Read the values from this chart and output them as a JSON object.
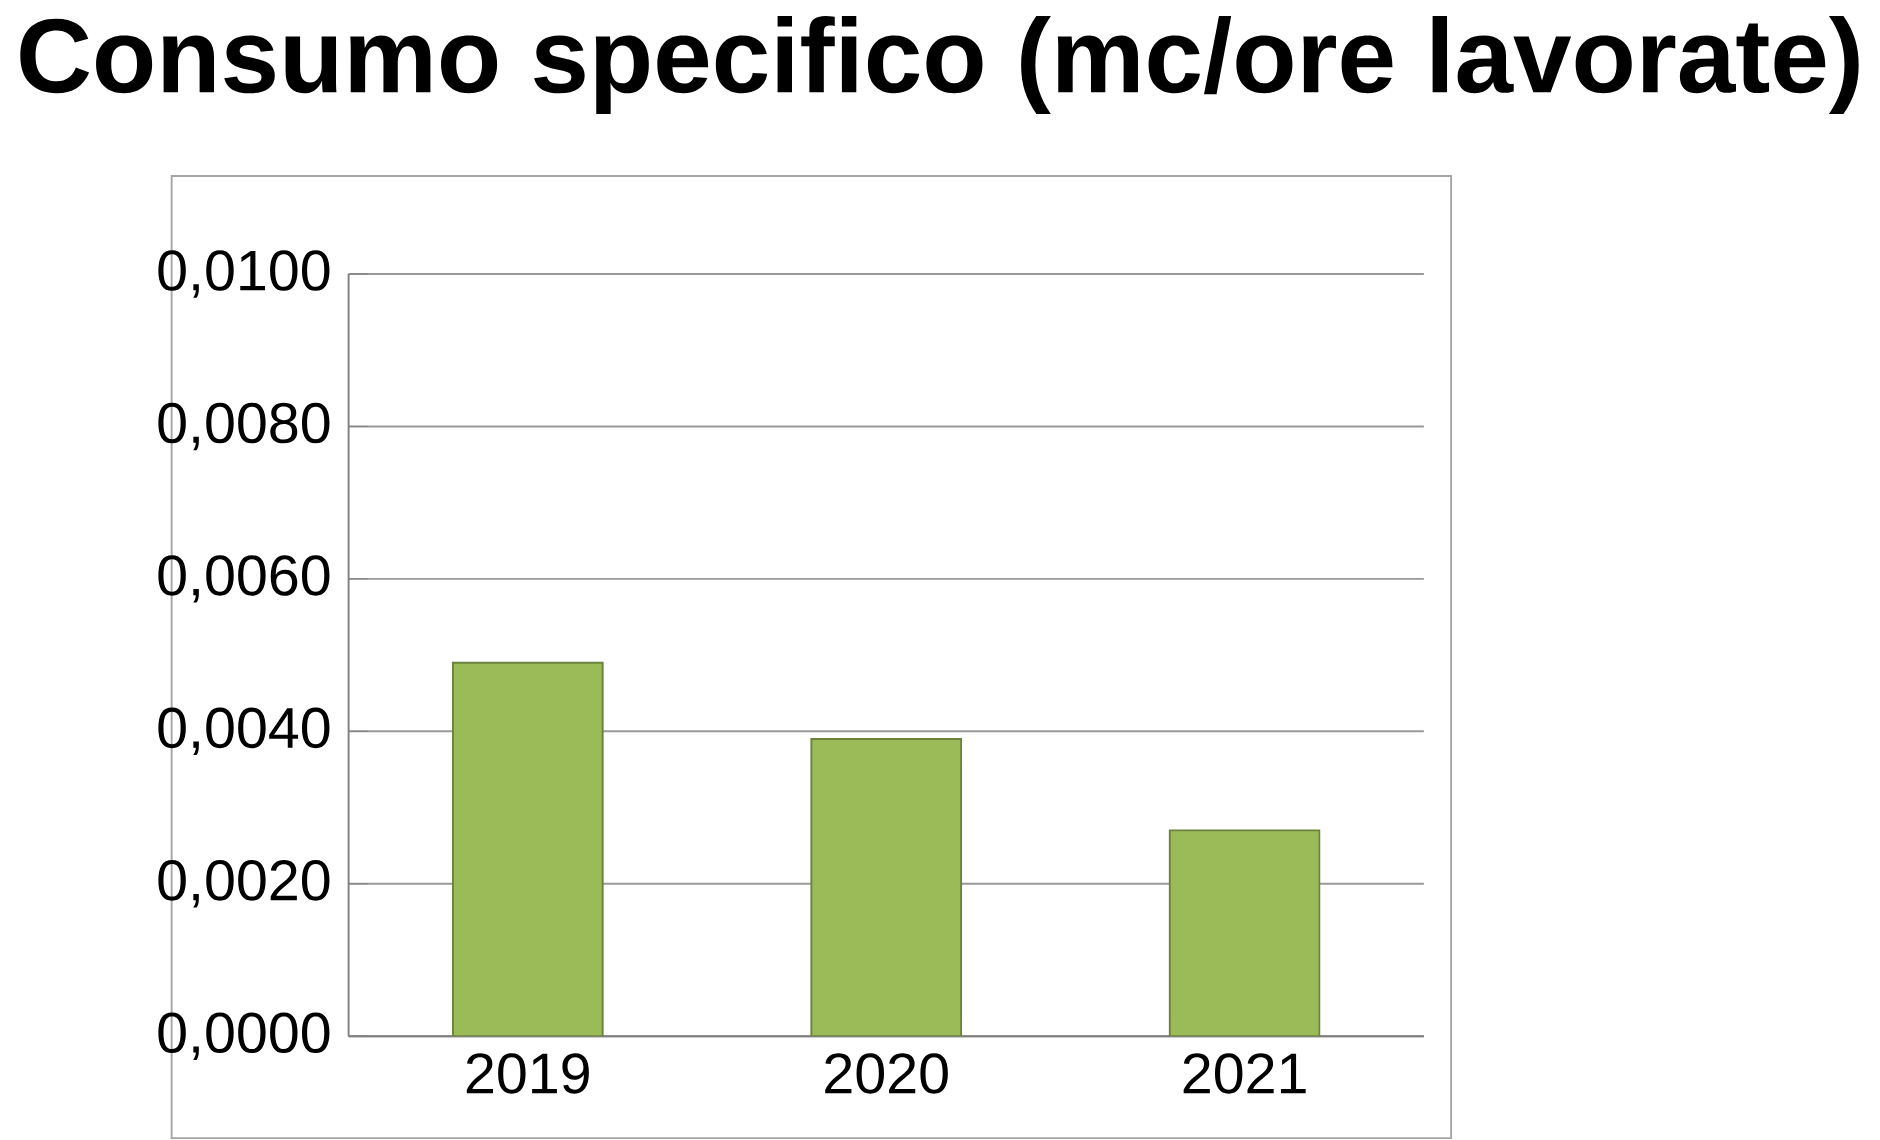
{
  "chart_data": {
    "type": "bar",
    "title": "Consumo specifico (mc/ore lavorate)",
    "categories": [
      "2019",
      "2020",
      "2021"
    ],
    "values": [
      0.0049,
      0.0039,
      0.0027
    ],
    "color": "#9bbb59",
    "ylim": [
      0,
      0.01
    ],
    "yticks": [
      {
        "value": 0,
        "label": "0,0000"
      },
      {
        "value": 0.002,
        "label": "0,0020"
      },
      {
        "value": 0.004,
        "label": "0,0040"
      },
      {
        "value": 0.006,
        "label": "0,0060"
      },
      {
        "value": 0.008,
        "label": "0,0080"
      },
      {
        "value": 0.01,
        "label": "0,0100"
      }
    ],
    "grid": "y"
  }
}
